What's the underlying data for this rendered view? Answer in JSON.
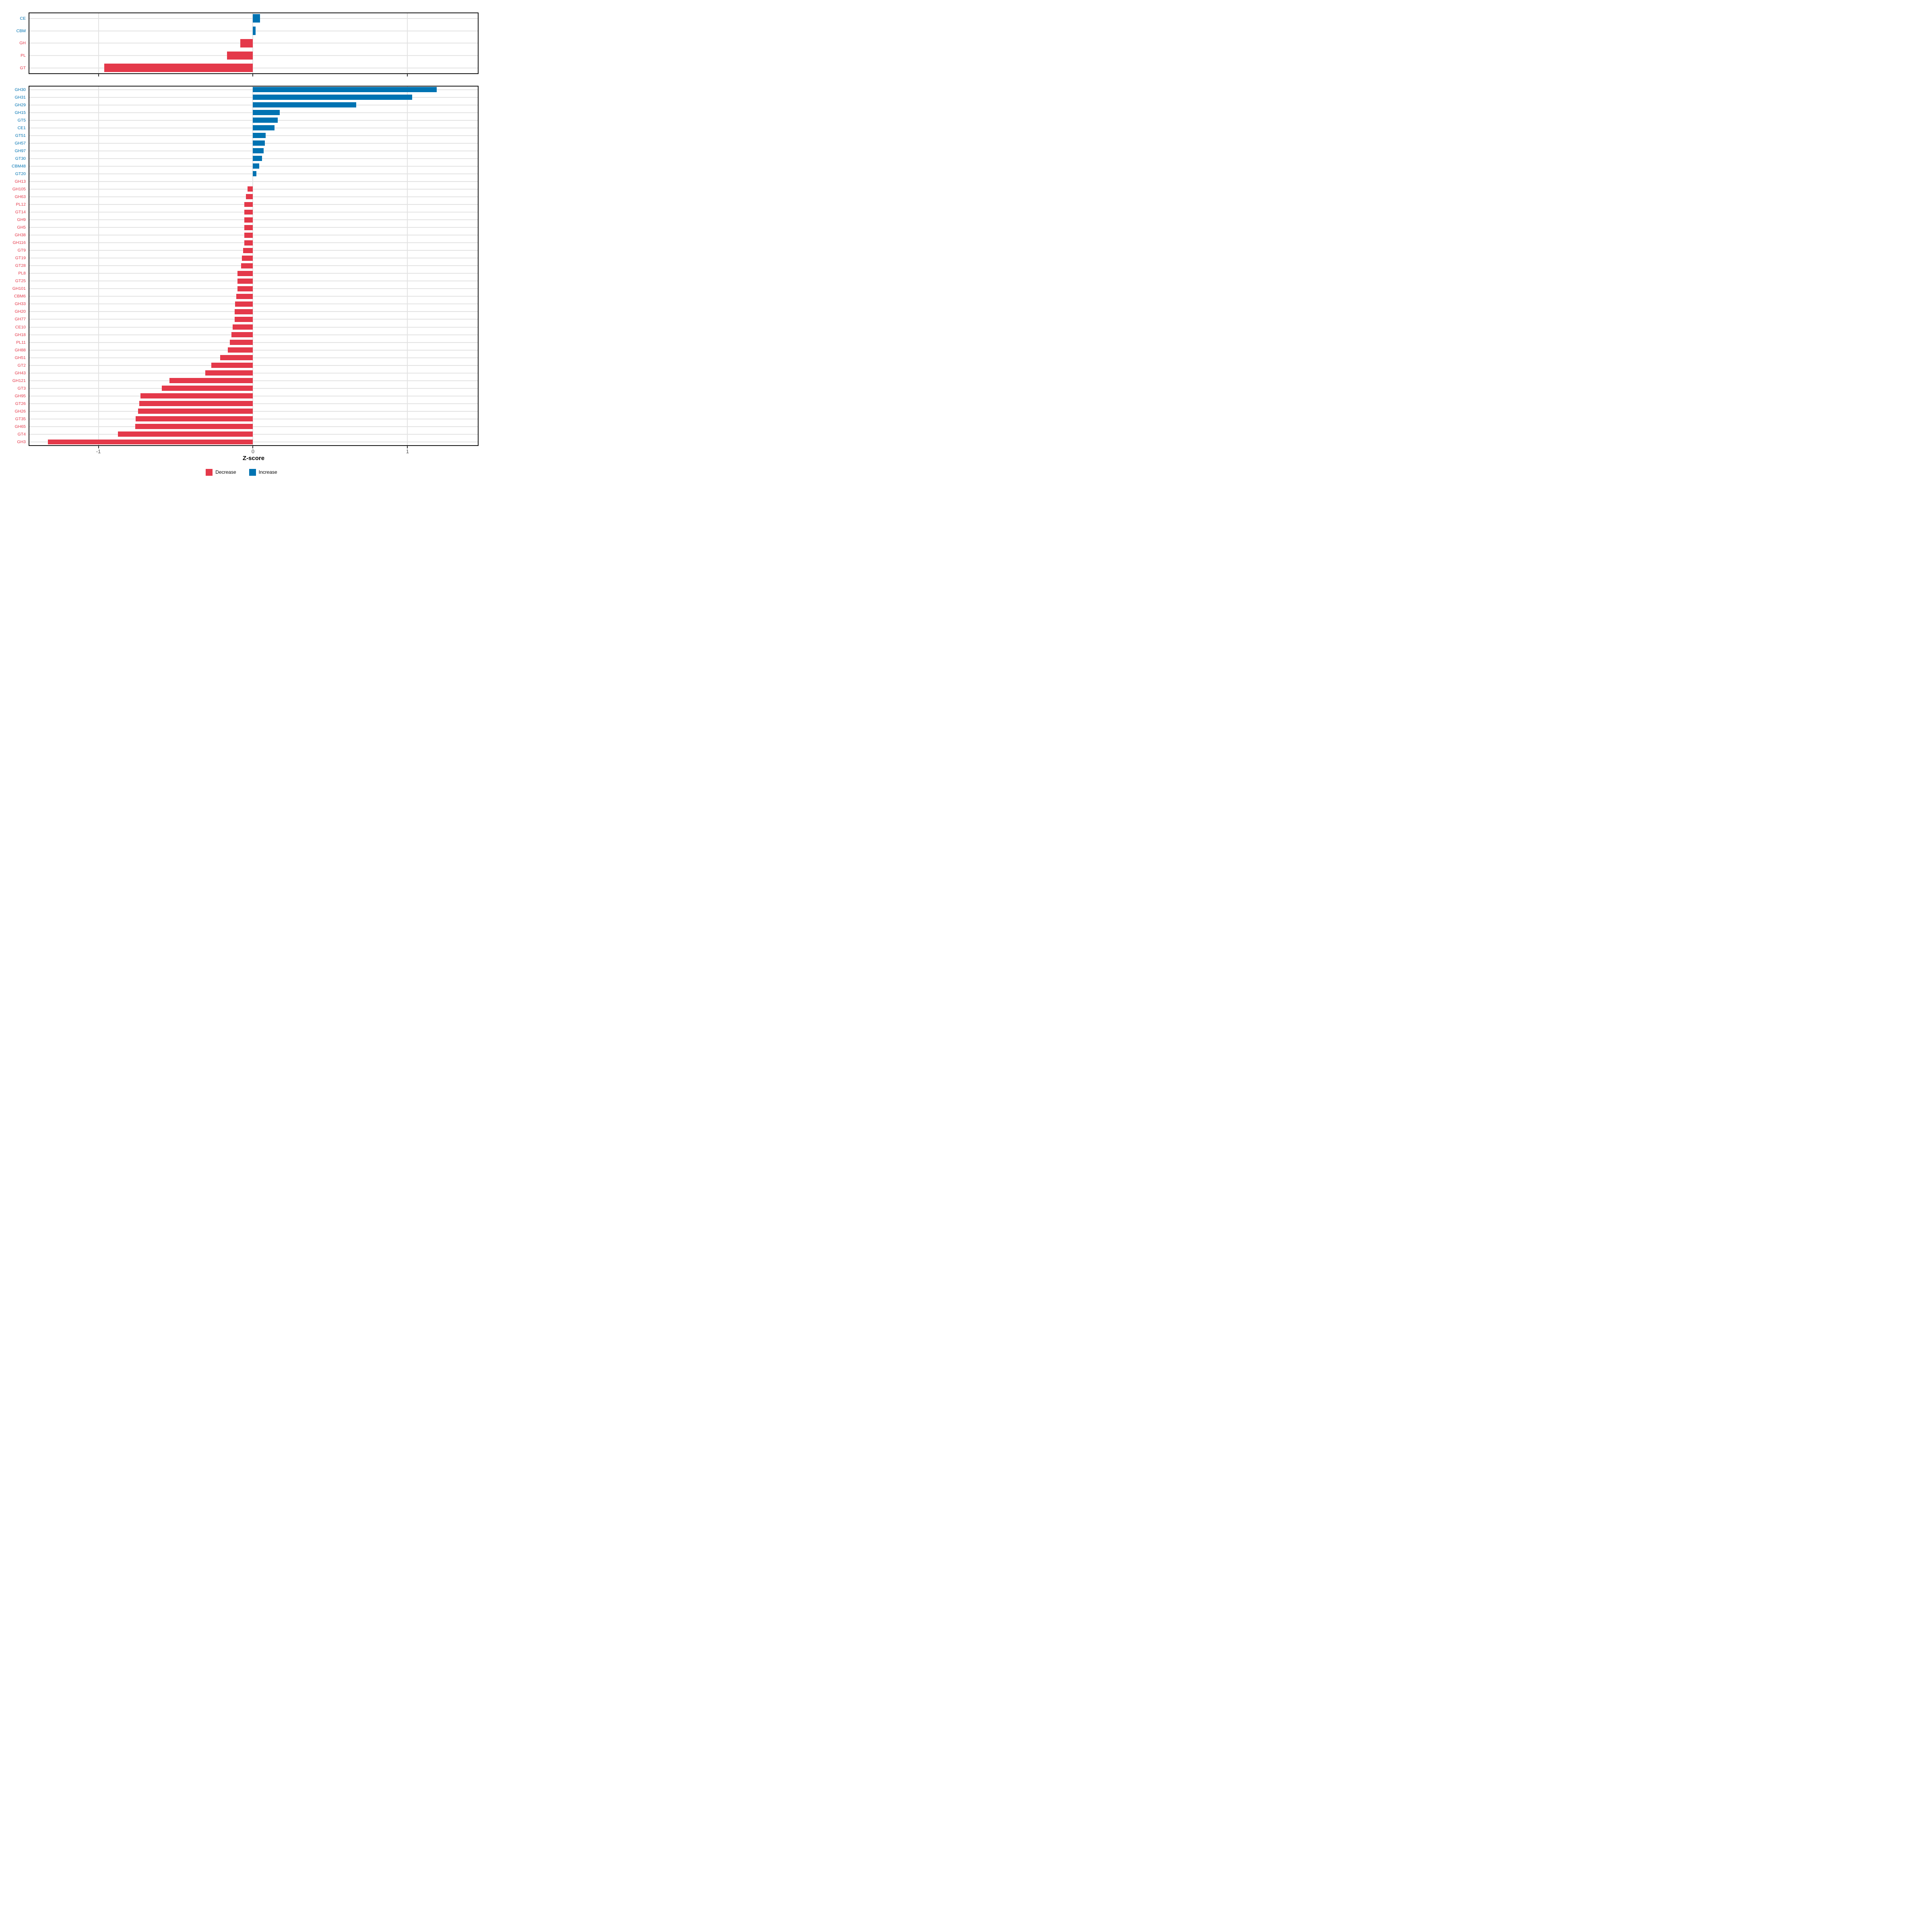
{
  "colors": {
    "decrease": "#e4394a",
    "increase": "#0073b2",
    "grid": "#e3e3e3",
    "axis_text": "#4d4d4d",
    "panel_border": "#141414",
    "background": "#ffffff"
  },
  "x_axis": {
    "label": "Z-score",
    "ticks": [
      "-1",
      "0",
      "1"
    ],
    "tick_values": [
      -1,
      0,
      1
    ],
    "limits": [
      -1.452,
      1.46
    ]
  },
  "legend": {
    "items": [
      {
        "label": "Decrease",
        "color_key": "decrease"
      },
      {
        "label": "Increase",
        "color_key": "increase"
      }
    ]
  },
  "chart_data": [
    {
      "type": "bar",
      "orientation": "horizontal",
      "panel": "families",
      "xlabel": "Z-score",
      "xlim": [
        -1.452,
        1.46
      ],
      "grid": "major-only",
      "categories": [
        "CE",
        "CBM",
        "GH",
        "PL",
        "GT"
      ],
      "values": [
        0.045,
        0.016,
        -0.083,
        -0.169,
        -0.963
      ],
      "directions": [
        "increase",
        "increase",
        "decrease",
        "decrease",
        "decrease"
      ]
    },
    {
      "type": "bar",
      "orientation": "horizontal",
      "panel": "subfamilies",
      "xlabel": "Z-score",
      "xlim": [
        -1.452,
        1.46
      ],
      "grid": "major-only",
      "categories": [
        "GH30",
        "GH31",
        "GH29",
        "GH15",
        "GT5",
        "CE1",
        "GT51",
        "GH57",
        "GH97",
        "GT30",
        "CBM48",
        "GT20",
        "GH13",
        "GH105",
        "GH63",
        "PL12",
        "GT14",
        "GH9",
        "GH5",
        "GH38",
        "GH116",
        "GT9",
        "GT19",
        "GT28",
        "PL8",
        "GT25",
        "GH101",
        "CBM6",
        "GH33",
        "GH20",
        "GH77",
        "CE10",
        "GH18",
        "PL11",
        "GH88",
        "GH51",
        "GT2",
        "GH43",
        "GH121",
        "GT3",
        "GH95",
        "GT26",
        "GH26",
        "GT35",
        "GH65",
        "GT4",
        "GH3"
      ],
      "values": [
        1.19,
        1.031,
        0.669,
        0.174,
        0.161,
        0.14,
        0.081,
        0.076,
        0.069,
        0.06,
        0.04,
        0.023,
        0,
        -0.034,
        -0.045,
        -0.055,
        -0.057,
        -0.056,
        -0.057,
        -0.056,
        -0.056,
        -0.064,
        -0.071,
        -0.076,
        -0.1,
        -0.101,
        -0.101,
        -0.107,
        -0.117,
        -0.118,
        -0.119,
        -0.131,
        -0.139,
        -0.149,
        -0.164,
        -0.211,
        -0.269,
        -0.309,
        -0.54,
        -0.59,
        -0.729,
        -0.737,
        -0.744,
        -0.76,
        -0.761,
        -0.875,
        -1.326
      ],
      "directions": [
        "increase",
        "increase",
        "increase",
        "increase",
        "increase",
        "increase",
        "increase",
        "increase",
        "increase",
        "increase",
        "increase",
        "increase",
        "decrease",
        "decrease",
        "decrease",
        "decrease",
        "decrease",
        "decrease",
        "decrease",
        "decrease",
        "decrease",
        "decrease",
        "decrease",
        "decrease",
        "decrease",
        "decrease",
        "decrease",
        "decrease",
        "decrease",
        "decrease",
        "decrease",
        "decrease",
        "decrease",
        "decrease",
        "decrease",
        "decrease",
        "decrease",
        "decrease",
        "decrease",
        "decrease",
        "decrease",
        "decrease",
        "decrease",
        "decrease",
        "decrease",
        "decrease",
        "decrease"
      ]
    }
  ]
}
